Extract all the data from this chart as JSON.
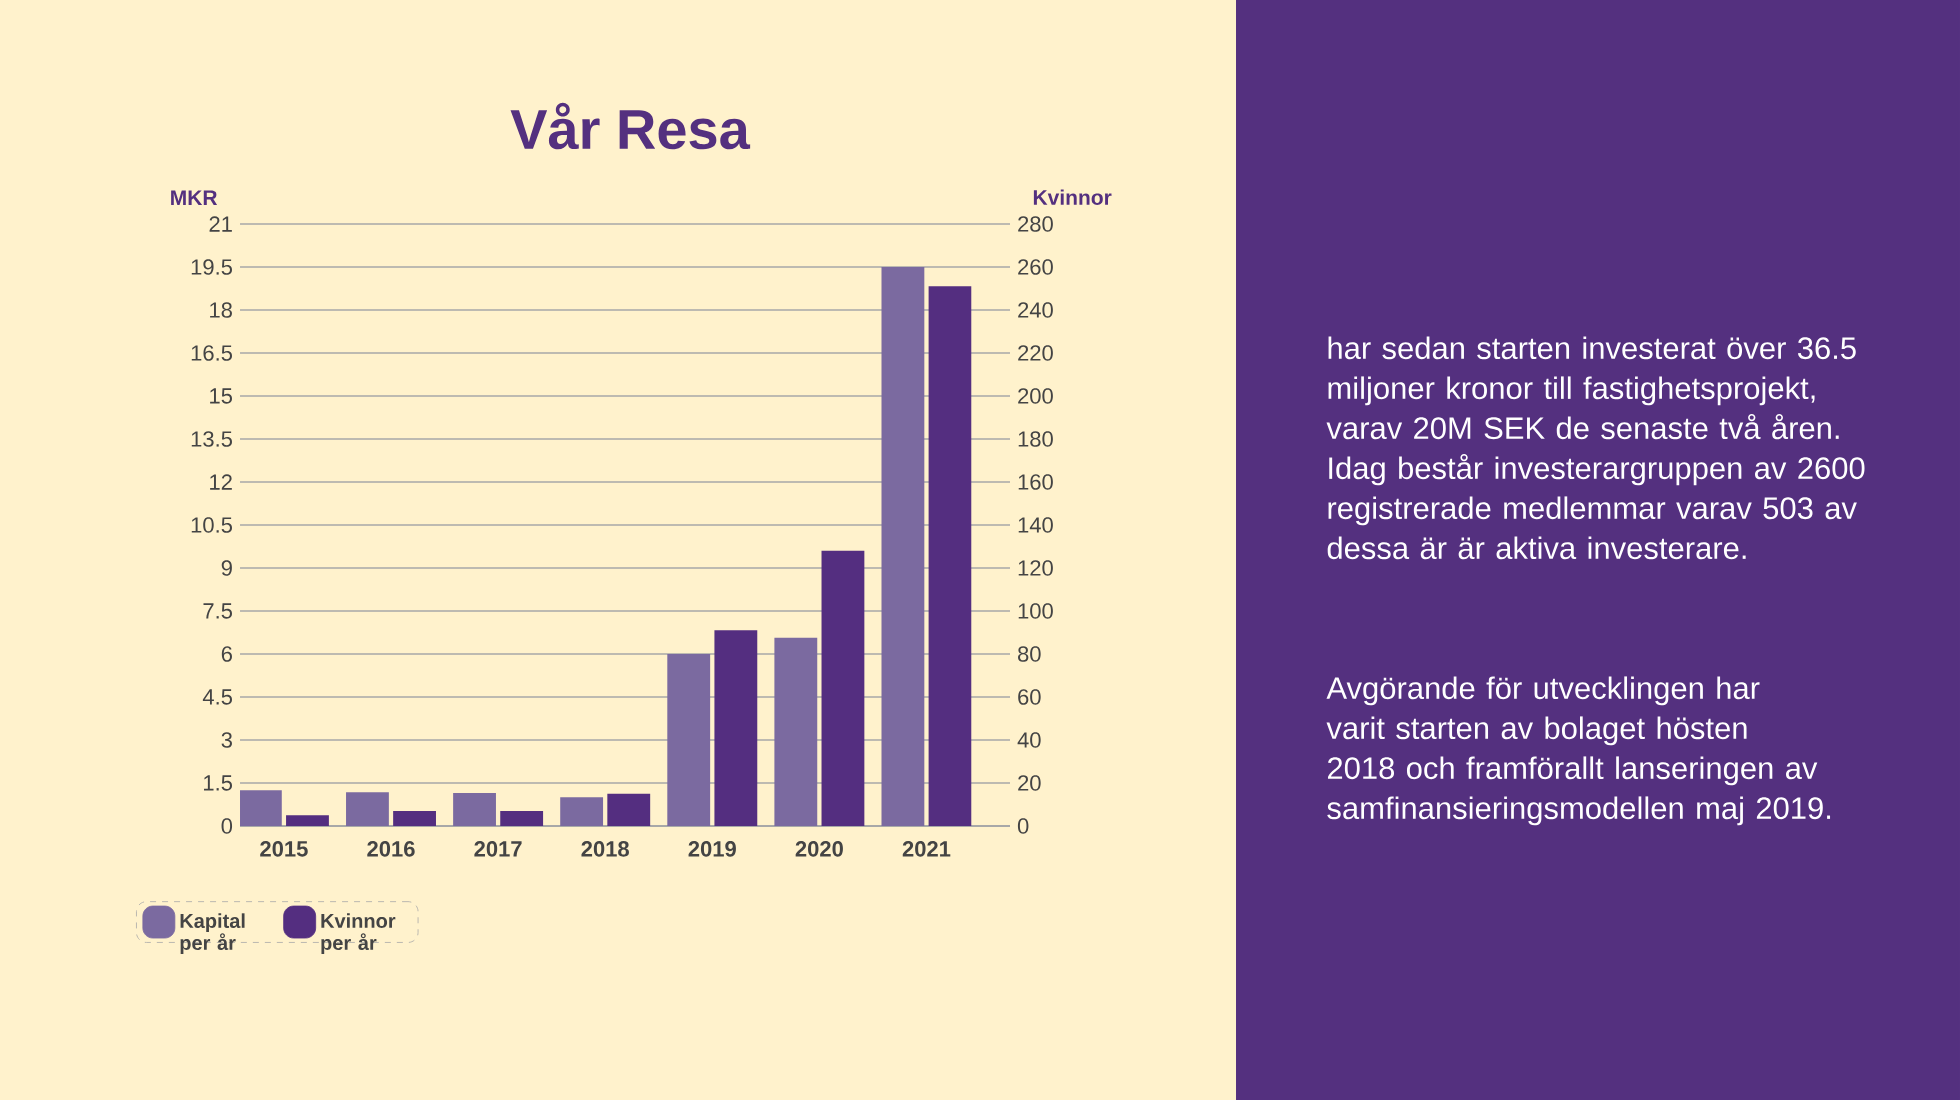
{
  "chart_data": {
    "type": "bar",
    "title": "Vår Resa",
    "ylabel": "MKR",
    "y2label": "Kvinnor",
    "categories": [
      "2015",
      "2016",
      "2017",
      "2018",
      "2019",
      "2020",
      "2021"
    ],
    "ylim": [
      0,
      21
    ],
    "yticks": [
      0,
      1.5,
      3,
      4.5,
      6,
      7.5,
      9,
      10.5,
      12,
      13.5,
      15,
      16.5,
      18,
      19.5,
      21
    ],
    "y2lim": [
      0,
      280
    ],
    "y2ticks": [
      0,
      20,
      40,
      60,
      80,
      100,
      120,
      140,
      160,
      180,
      200,
      220,
      240,
      260,
      280
    ],
    "series": [
      {
        "name": "Kapital per år",
        "color": "#7b6aa0",
        "values": [
          1.25,
          1.18,
          1.15,
          1.0,
          6.0,
          6.57,
          19.5
        ]
      },
      {
        "name": "Kvinnor per år",
        "color": "#542e80",
        "axis": "y2",
        "values": [
          5,
          7,
          7,
          15,
          91,
          128,
          251
        ]
      }
    ],
    "grid": "y",
    "legend": "bottom left",
    "annotations": [
      "har sedan starten investerat över 36.5 miljoner kronor till fastighetsprojekt, varav 20M SEK de senaste två åren. Idag består investerargruppen av 2600 registrerade medlemmar varav 503 av dessa är är aktiva investerare.",
      "Avgörande för utvecklingen har varit starten av bolaget hösten 2018 och framförallt lanseringen av samfinansieringsmodellen maj 2019."
    ]
  }
}
